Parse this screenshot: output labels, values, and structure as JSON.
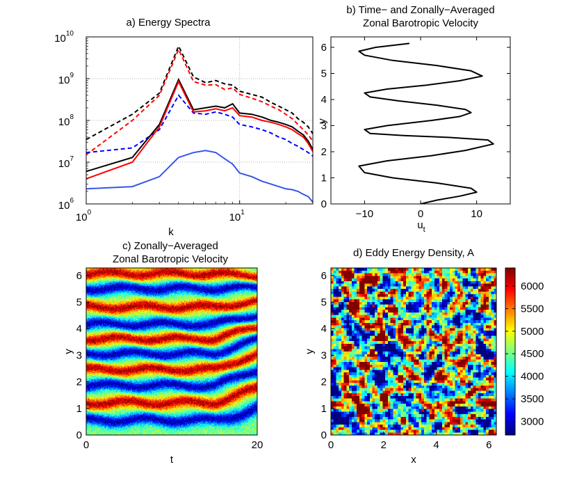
{
  "chart_data": [
    {
      "type": "line",
      "title": "a) Energy Spectra",
      "xlabel": "k",
      "ylabel": "",
      "xscale": "log",
      "yscale": "log",
      "xlim": [
        1,
        30
      ],
      "ylim": [
        1000000,
        10000000000
      ],
      "xticks": [
        "10",
        "10"
      ],
      "xtick_exps": [
        "0",
        "1"
      ],
      "yticks": [
        "10",
        "10",
        "10",
        "10",
        "10"
      ],
      "ytick_exps": [
        "6",
        "7",
        "8",
        "9",
        "10"
      ],
      "grid": true,
      "x": [
        1,
        2,
        3,
        4,
        5,
        6,
        7,
        8,
        9,
        10,
        12,
        14,
        16,
        18,
        20,
        22,
        24,
        26,
        28,
        30
      ],
      "series": [
        {
          "color": "#000000",
          "style": "dashed",
          "values": [
            35000000,
            140000000,
            450000000,
            6000000000,
            1100000000,
            800000000,
            900000000,
            750000000,
            700000000,
            500000000,
            420000000,
            360000000,
            270000000,
            220000000,
            180000000,
            150000000,
            110000000,
            90000000,
            70000000,
            48000000
          ]
        },
        {
          "color": "#ff0000",
          "style": "dashed",
          "values": [
            15000000,
            100000000,
            400000000,
            5000000000,
            850000000,
            700000000,
            720000000,
            550000000,
            600000000,
            420000000,
            340000000,
            280000000,
            220000000,
            180000000,
            140000000,
            110000000,
            80000000,
            60000000,
            45000000,
            32000000
          ]
        },
        {
          "color": "#0000ff",
          "style": "dashed",
          "values": [
            17000000,
            22000000,
            60000000,
            400000000,
            150000000,
            140000000,
            160000000,
            140000000,
            120000000,
            80000000,
            70000000,
            60000000,
            50000000,
            40000000,
            35000000,
            28000000,
            24000000,
            20000000,
            17000000,
            14000000
          ]
        },
        {
          "color": "#000000",
          "style": "solid",
          "values": [
            6000000,
            13000000,
            80000000,
            950000000,
            180000000,
            200000000,
            220000000,
            200000000,
            250000000,
            150000000,
            140000000,
            120000000,
            100000000,
            90000000,
            80000000,
            70000000,
            55000000,
            45000000,
            32000000,
            20000000
          ]
        },
        {
          "color": "#ff0000",
          "style": "solid",
          "values": [
            4000000,
            10000000,
            70000000,
            850000000,
            160000000,
            170000000,
            190000000,
            170000000,
            200000000,
            130000000,
            120000000,
            100000000,
            90000000,
            80000000,
            70000000,
            60000000,
            48000000,
            40000000,
            28000000,
            18000000
          ]
        },
        {
          "color": "#3355ee",
          "style": "solid",
          "values": [
            2300000,
            2600000,
            4500000,
            13000000,
            17000000,
            19000000,
            17000000,
            12000000,
            9000000,
            5500000,
            4500000,
            3500000,
            3000000,
            2600000,
            2300000,
            2200000,
            2000000,
            1700000,
            1500000,
            1100000
          ]
        }
      ]
    },
    {
      "type": "line",
      "title": "b) Time− and Zonally−Averaged",
      "subtitle": "Zonal Barotropic Velocity",
      "xlabel": "u",
      "xlabel_sub": "t",
      "ylabel": "y",
      "xlim": [
        -16,
        16
      ],
      "ylim": [
        0,
        6.4
      ],
      "xticks": [
        "−10",
        "0",
        "10"
      ],
      "yticks": [
        "0",
        "1",
        "2",
        "3",
        "4",
        "5",
        "6"
      ],
      "grid": false,
      "series": [
        {
          "color": "#000000",
          "style": "solid",
          "u": [
            0,
            3,
            7,
            10,
            9,
            3,
            -5,
            -10,
            -11,
            -6,
            2,
            8,
            13,
            12,
            5,
            -3,
            -9,
            -10,
            -6,
            2,
            7,
            9,
            8,
            3,
            -4,
            -9,
            -10,
            -6,
            1,
            7,
            11,
            9,
            3,
            -5,
            -10,
            -11,
            -8,
            -2
          ],
          "y": [
            0,
            0.15,
            0.3,
            0.45,
            0.6,
            0.8,
            1.0,
            1.2,
            1.45,
            1.65,
            1.85,
            2.05,
            2.3,
            2.45,
            2.55,
            2.62,
            2.7,
            2.85,
            3.0,
            3.2,
            3.35,
            3.5,
            3.62,
            3.78,
            3.95,
            4.1,
            4.25,
            4.4,
            4.55,
            4.72,
            4.9,
            5.1,
            5.3,
            5.5,
            5.7,
            5.85,
            6.0,
            6.15
          ]
        }
      ]
    },
    {
      "type": "heatmap",
      "title": "c) Zonally−Averaged",
      "subtitle": "Zonal Barotropic Velocity",
      "xlabel": "t",
      "ylabel": "y",
      "xlim": [
        0,
        20
      ],
      "ylim": [
        0,
        6.283
      ],
      "xticks": [
        "0",
        "20"
      ],
      "yticks": [
        "0",
        "1",
        "2",
        "3",
        "4",
        "5",
        "6"
      ],
      "bands": [
        {
          "y": 0.55,
          "sign": -1
        },
        {
          "y": 1.2,
          "sign": 1
        },
        {
          "y": 1.85,
          "sign": -1
        },
        {
          "y": 2.45,
          "sign": 1
        },
        {
          "y": 3.05,
          "sign": -1
        },
        {
          "y": 3.6,
          "sign": 1
        },
        {
          "y": 4.15,
          "sign": -1
        },
        {
          "y": 4.8,
          "sign": 1
        },
        {
          "y": 5.5,
          "sign": -1
        },
        {
          "y": 6.05,
          "sign": 1
        }
      ]
    },
    {
      "type": "heatmap",
      "title": "d) Eddy Energy Density, A",
      "xlabel": "x",
      "ylabel": "y",
      "xlim": [
        0,
        6.283
      ],
      "ylim": [
        0,
        6.283
      ],
      "xticks": [
        "0",
        "2",
        "4",
        "6"
      ],
      "yticks": [
        "0",
        "1",
        "2",
        "3",
        "4",
        "5",
        "6"
      ],
      "colorbar": {
        "min": 2700,
        "max": 6400,
        "ticks": [
          "3000",
          "3500",
          "4000",
          "4500",
          "5000",
          "5500",
          "6000"
        ],
        "tick_values": [
          3000,
          3500,
          4000,
          4500,
          5000,
          5500,
          6000
        ]
      }
    }
  ]
}
